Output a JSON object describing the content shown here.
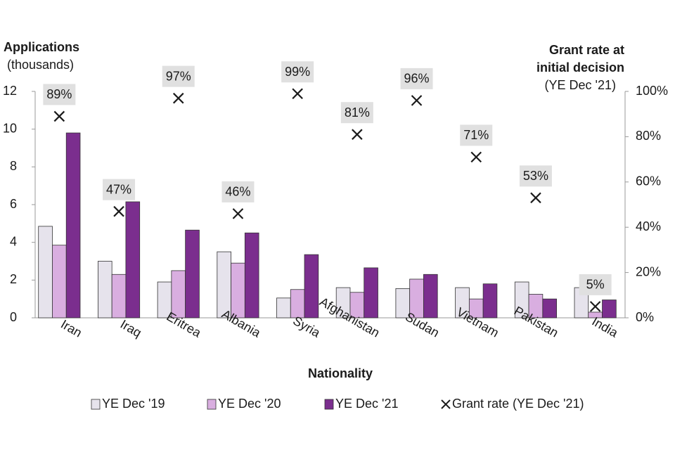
{
  "chart_data": {
    "type": "bar",
    "y_label": [
      "Applications",
      "(thousands)"
    ],
    "y2_label": [
      "Grant rate at",
      "initial decision",
      "(YE Dec '21)"
    ],
    "x_label": "Nationality",
    "categories": [
      "Iran",
      "Iraq",
      "Eritrea",
      "Albania",
      "Syria",
      "Afghanistan",
      "Sudan",
      "Vietnam",
      "Pakistan",
      "India"
    ],
    "series": [
      {
        "name": "YE Dec '19",
        "color": "#e6e3ec",
        "values": [
          4.85,
          3.0,
          1.9,
          3.5,
          1.05,
          1.6,
          1.55,
          1.6,
          1.9,
          1.6
        ]
      },
      {
        "name": "YE Dec '20",
        "color": "#d9aee0",
        "values": [
          3.85,
          2.3,
          2.5,
          2.9,
          1.5,
          1.35,
          2.05,
          1.0,
          1.25,
          0.3
        ]
      },
      {
        "name": "YE Dec '21",
        "color": "#7b2e8e",
        "values": [
          9.8,
          6.15,
          4.65,
          4.5,
          3.35,
          2.65,
          2.3,
          1.8,
          1.0,
          0.95
        ]
      },
      {
        "name": "Grant rate (YE Dec '21)",
        "type": "scatter",
        "axis": "y2",
        "color": "#1a1a1a",
        "values": [
          89,
          47,
          97,
          46,
          99,
          81,
          96,
          71,
          53,
          5
        ],
        "value_labels": [
          "89%",
          "47%",
          "97%",
          "46%",
          "99%",
          "81%",
          "96%",
          "71%",
          "53%",
          "5%"
        ]
      }
    ],
    "ylim": [
      0,
      12
    ],
    "yticks": [
      0,
      2,
      4,
      6,
      8,
      10,
      12
    ],
    "y2lim": [
      0,
      100
    ],
    "y2ticks": [
      {
        "value": 0,
        "label": "0%"
      },
      {
        "value": 20,
        "label": "20%"
      },
      {
        "value": 40,
        "label": "40%"
      },
      {
        "value": 60,
        "label": "60%"
      },
      {
        "value": 80,
        "label": "80%"
      },
      {
        "value": 100,
        "label": "100%"
      }
    ],
    "grid": false
  }
}
